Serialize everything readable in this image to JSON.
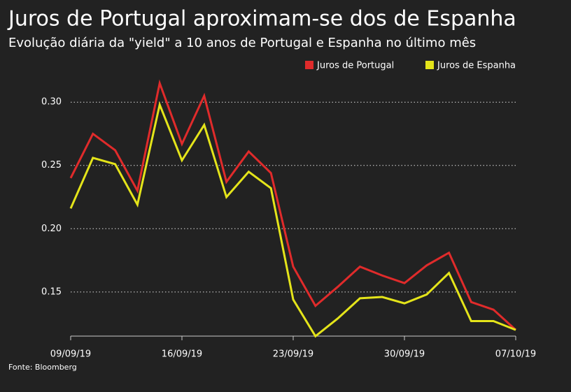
{
  "chart_data": {
    "type": "line",
    "title": "Juros de Portugal aproximam-se dos de Espanha",
    "subtitle": "Evolução diária da \"yield\" a 10 anos de Portugal e Espanha no último mês",
    "source": "Fonte: Bloomberg",
    "categories": [
      "09/09/19",
      null,
      null,
      null,
      null,
      "16/09/19",
      null,
      null,
      null,
      null,
      "23/09/19",
      null,
      null,
      null,
      null,
      "30/09/19",
      null,
      null,
      null,
      null,
      "07/10/19"
    ],
    "series": [
      {
        "name": "Juros de Portugal",
        "color": "#e02b2b",
        "values": [
          0.24,
          0.275,
          0.262,
          0.23,
          0.315,
          0.267,
          0.305,
          0.237,
          0.261,
          0.244,
          0.17,
          0.139,
          0.154,
          0.17,
          0.163,
          0.157,
          0.171,
          0.181,
          0.142,
          0.136,
          0.12
        ]
      },
      {
        "name": "Juros de Espanha",
        "color": "#e4e41a",
        "values": [
          0.216,
          0.256,
          0.251,
          0.219,
          0.298,
          0.254,
          0.282,
          0.225,
          0.245,
          0.232,
          0.144,
          0.115,
          0.129,
          0.145,
          0.146,
          0.141,
          0.148,
          0.165,
          0.127,
          0.127,
          0.12
        ]
      }
    ],
    "ylim": [
      0.114,
      0.32
    ],
    "yticks": [
      0.15,
      {
        "value": 0.2,
        "label": "0.20"
      },
      0.25,
      {
        "value": 0.3,
        "label": "0.30"
      }
    ],
    "grid": true,
    "legend": "top-right"
  }
}
